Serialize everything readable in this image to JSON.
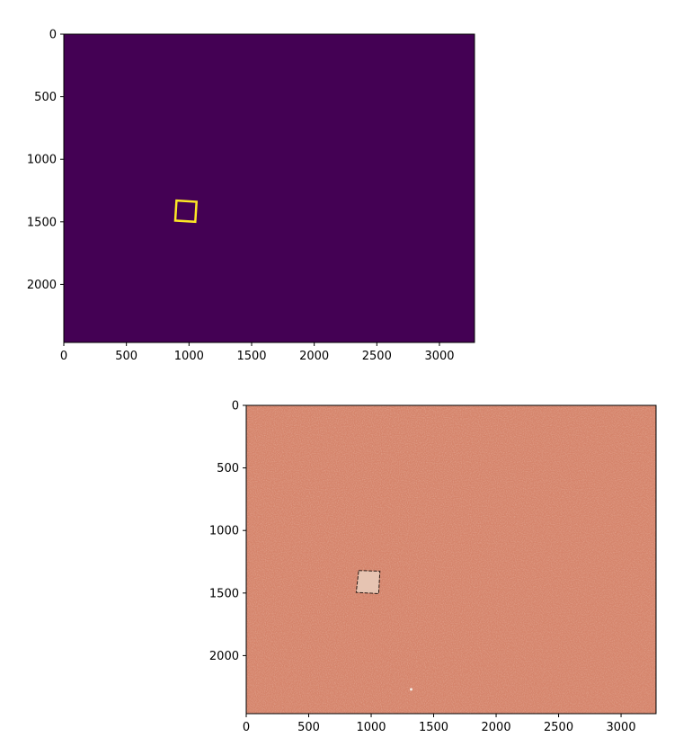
{
  "chart_data": [
    {
      "type": "heatmap",
      "title": "",
      "xlabel": "",
      "ylabel": "",
      "xlim": [
        0,
        3280
      ],
      "ylim": [
        2464,
        0
      ],
      "x_ticks": [
        0,
        500,
        1000,
        1500,
        2000,
        2500,
        3000
      ],
      "y_ticks": [
        0,
        500,
        1000,
        1500,
        2000
      ],
      "colormap": "viridis",
      "background_color": "#440154",
      "mask_color": "#fde725",
      "mask_outline": [
        [
          900,
          1330
        ],
        [
          1060,
          1340
        ],
        [
          1050,
          1500
        ],
        [
          890,
          1490
        ]
      ],
      "grid": false
    },
    {
      "type": "image",
      "title": "",
      "xlabel": "",
      "ylabel": "",
      "xlim": [
        0,
        3280
      ],
      "ylim": [
        2464,
        0
      ],
      "x_ticks": [
        0,
        500,
        1000,
        1500,
        2000,
        2500,
        3000
      ],
      "y_ticks": [
        0,
        500,
        1000,
        1500,
        2000
      ],
      "ground_color": "#d5846b",
      "object_color": "#e6c4b2",
      "object_outline": [
        [
          900,
          1320
        ],
        [
          1070,
          1325
        ],
        [
          1060,
          1505
        ],
        [
          880,
          1495
        ]
      ],
      "grid": false
    }
  ]
}
